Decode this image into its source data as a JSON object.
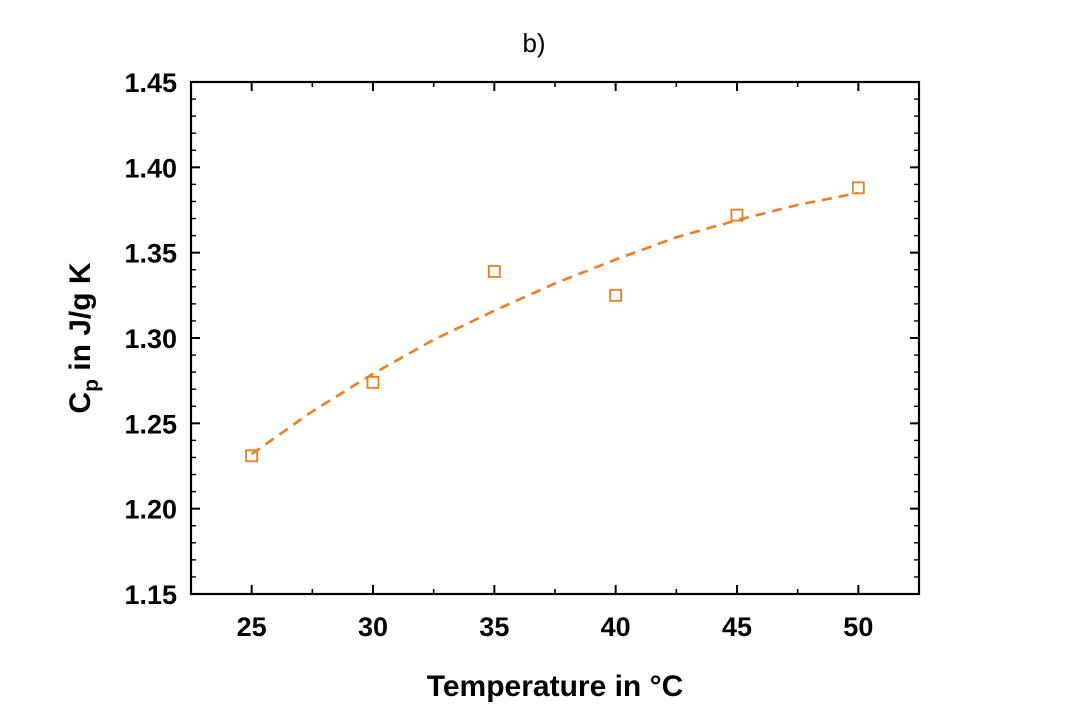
{
  "chart_data": {
    "type": "scatter",
    "panel_label": "b)",
    "xlabel": "Temperature in °C",
    "ylabel": {
      "main": "C",
      "subscript": "p",
      "rest": " in J/g K"
    },
    "xlim": [
      22.5,
      52.5
    ],
    "ylim": [
      1.15,
      1.45
    ],
    "x_ticks": [
      25,
      30,
      35,
      40,
      45,
      50
    ],
    "y_ticks": [
      1.15,
      1.2,
      1.25,
      1.3,
      1.35,
      1.4,
      1.45
    ],
    "x_tick_labels": [
      "25",
      "30",
      "35",
      "40",
      "45",
      "50"
    ],
    "y_tick_labels": [
      "1.15",
      "1.20",
      "1.25",
      "1.30",
      "1.35",
      "1.40",
      "1.45"
    ],
    "grid": false,
    "color": "#f07d20",
    "series": [
      {
        "kind": "points",
        "marker": "open-square",
        "x": [
          25,
          30,
          35,
          40,
          45,
          50
        ],
        "y": [
          1.231,
          1.274,
          1.339,
          1.325,
          1.372,
          1.388
        ]
      },
      {
        "kind": "fit",
        "line_style": "dashed",
        "x": [
          25,
          27.5,
          30,
          32.5,
          35,
          37.5,
          40,
          42.5,
          45,
          47.5,
          50
        ],
        "y": [
          1.232,
          1.257,
          1.279,
          1.299,
          1.316,
          1.332,
          1.346,
          1.359,
          1.369,
          1.378,
          1.385
        ]
      }
    ]
  }
}
